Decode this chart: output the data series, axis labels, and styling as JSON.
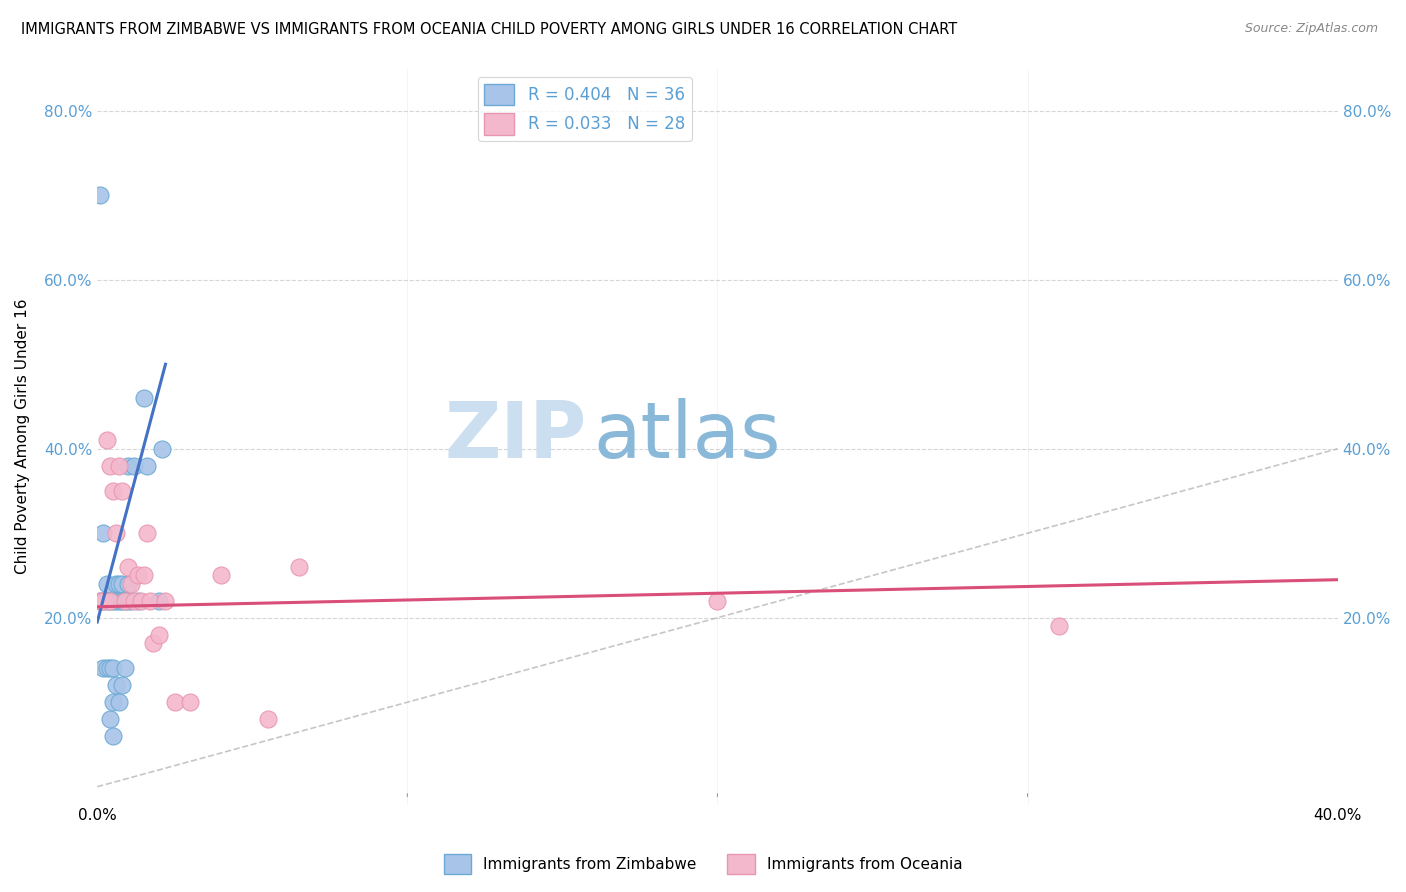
{
  "title": "IMMIGRANTS FROM ZIMBABWE VS IMMIGRANTS FROM OCEANIA CHILD POVERTY AMONG GIRLS UNDER 16 CORRELATION CHART",
  "source": "Source: ZipAtlas.com",
  "ylabel": "Child Poverty Among Girls Under 16",
  "yticks": [
    0.0,
    0.2,
    0.4,
    0.6,
    0.8
  ],
  "ytick_labels_left": [
    "",
    "20.0%",
    "40.0%",
    "60.0%",
    "80.0%"
  ],
  "ytick_labels_right": [
    "",
    "20.0%",
    "40.0%",
    "60.0%",
    "80.0%"
  ],
  "xticks": [
    0.0,
    0.1,
    0.2,
    0.3,
    0.4
  ],
  "xtick_labels": [
    "0.0%",
    "",
    "",
    "",
    "40.0%"
  ],
  "xlim": [
    0.0,
    0.4
  ],
  "ylim": [
    -0.02,
    0.85
  ],
  "legend_R_zim": "R = 0.404",
  "legend_N_zim": "N = 36",
  "legend_R_oce": "R = 0.033",
  "legend_N_oce": "N = 28",
  "color_zim_fill": "#a8c4e8",
  "color_oce_fill": "#f4b8cc",
  "color_zim_edge": "#6aaad4",
  "color_oce_edge": "#e896b0",
  "color_zim_line": "#4472c4",
  "color_oce_line": "#d94f7a",
  "color_diag": "#b8b8b8",
  "color_tick": "#5a9fd4",
  "watermark_zip": "ZIP",
  "watermark_atlas": "atlas",
  "watermark_color_zip": "#ccdff0",
  "watermark_color_atlas": "#8ab8d8",
  "zim_line_x0": 0.0,
  "zim_line_y0": 0.195,
  "zim_line_x1": 0.022,
  "zim_line_y1": 0.5,
  "oce_line_x0": 0.0,
  "oce_line_y0": 0.213,
  "oce_line_x1": 0.4,
  "oce_line_y1": 0.245,
  "zim_scatter_x": [
    0.001,
    0.001,
    0.002,
    0.002,
    0.002,
    0.003,
    0.003,
    0.003,
    0.004,
    0.004,
    0.004,
    0.005,
    0.005,
    0.005,
    0.005,
    0.006,
    0.006,
    0.006,
    0.007,
    0.007,
    0.007,
    0.008,
    0.008,
    0.008,
    0.009,
    0.009,
    0.01,
    0.01,
    0.01,
    0.011,
    0.012,
    0.013,
    0.015,
    0.016,
    0.02,
    0.021
  ],
  "zim_scatter_y": [
    0.7,
    0.22,
    0.3,
    0.22,
    0.14,
    0.24,
    0.22,
    0.14,
    0.22,
    0.14,
    0.08,
    0.22,
    0.14,
    0.1,
    0.06,
    0.24,
    0.22,
    0.12,
    0.24,
    0.22,
    0.1,
    0.24,
    0.22,
    0.12,
    0.22,
    0.14,
    0.38,
    0.24,
    0.22,
    0.22,
    0.38,
    0.22,
    0.46,
    0.38,
    0.22,
    0.4
  ],
  "oce_scatter_x": [
    0.001,
    0.002,
    0.003,
    0.004,
    0.004,
    0.005,
    0.006,
    0.007,
    0.008,
    0.009,
    0.01,
    0.011,
    0.012,
    0.013,
    0.014,
    0.015,
    0.016,
    0.017,
    0.018,
    0.02,
    0.022,
    0.025,
    0.03,
    0.04,
    0.055,
    0.065,
    0.2,
    0.31
  ],
  "oce_scatter_y": [
    0.22,
    0.22,
    0.41,
    0.38,
    0.22,
    0.35,
    0.3,
    0.38,
    0.35,
    0.22,
    0.26,
    0.24,
    0.22,
    0.25,
    0.22,
    0.25,
    0.3,
    0.22,
    0.17,
    0.18,
    0.22,
    0.1,
    0.1,
    0.25,
    0.08,
    0.26,
    0.22,
    0.19
  ]
}
